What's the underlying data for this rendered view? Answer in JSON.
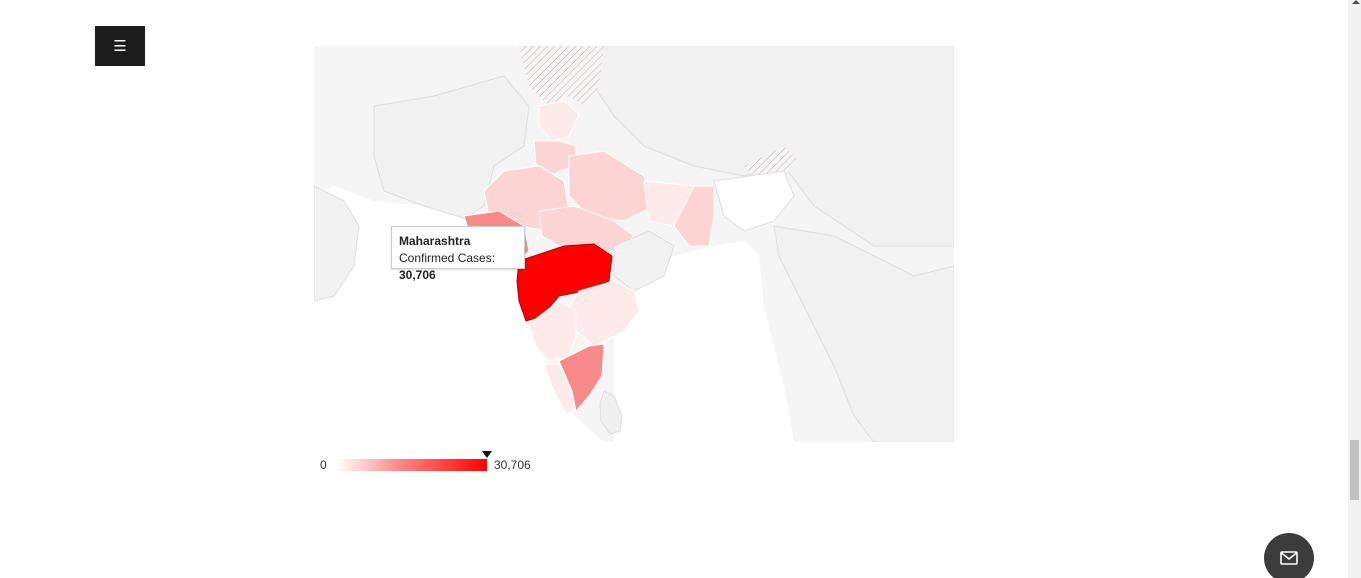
{
  "menu": {
    "icon": "hamburger-menu-icon",
    "glyph": "☰"
  },
  "map": {
    "region": "India",
    "metric_label": "Confirmed Cases",
    "color_min": "#ffffff",
    "color_max": "#ff0000",
    "highlighted_state": "Maharashtra",
    "highlighted_value": 30706
  },
  "tooltip": {
    "title": "Maharashtra",
    "label": "Confirmed Cases: ",
    "value": "30,706"
  },
  "legend": {
    "min_label": "0",
    "max_label": "30,706",
    "marker_value": 30706
  },
  "mail_button": {
    "icon": "mail-icon"
  },
  "colors": {
    "land_background": "#f2f2f2",
    "highest": "#ff0000",
    "high": "#f98a8a",
    "medium": "#fbb4b4",
    "low": "#fdd4d4",
    "lowest": "#feeaea"
  }
}
